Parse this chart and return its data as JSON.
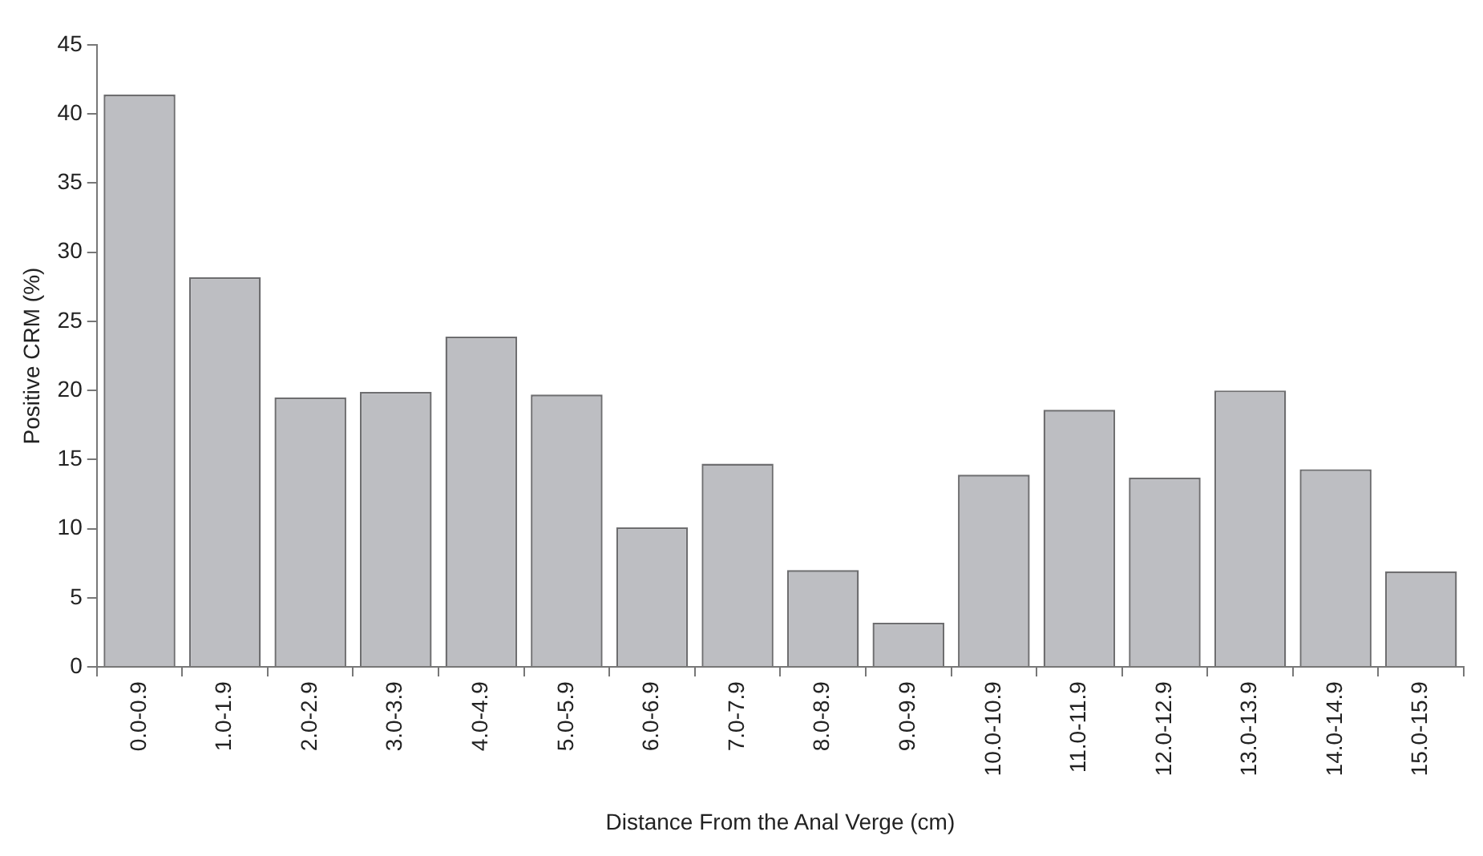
{
  "chart_data": {
    "type": "bar",
    "xlabel": "Distance From the Anal Verge (cm)",
    "ylabel": "Positive CRM (%)",
    "categories": [
      "0.0-0.9",
      "1.0-1.9",
      "2.0-2.9",
      "3.0-3.9",
      "4.0-4.9",
      "5.0-5.9",
      "6.0-6.9",
      "7.0-7.9",
      "8.0-8.9",
      "9.0-9.9",
      "10.0-10.9",
      "11.0-11.9",
      "12.0-12.9",
      "13.0-13.9",
      "14.0-14.9",
      "15.0-15.9"
    ],
    "values": [
      41.4,
      28.2,
      19.5,
      19.9,
      23.9,
      19.7,
      10.1,
      14.7,
      7.0,
      3.2,
      13.9,
      18.6,
      13.7,
      20.0,
      14.3,
      6.9
    ],
    "color": "#bdbec2",
    "ylim": [
      0,
      45
    ],
    "yticks": [
      0,
      5,
      10,
      15,
      20,
      25,
      30,
      35,
      40,
      45
    ],
    "grid": false,
    "legend": false
  }
}
